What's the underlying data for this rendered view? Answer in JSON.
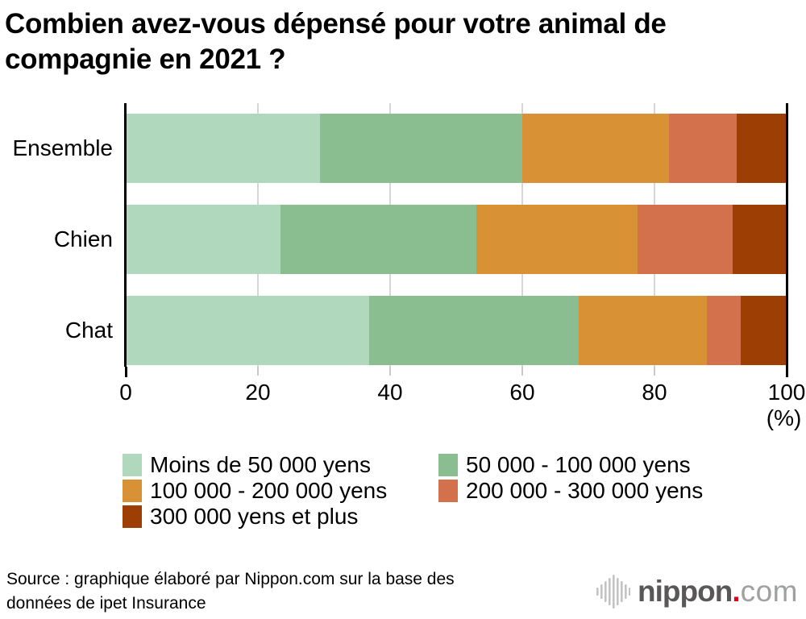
{
  "title": "Combien avez-vous dépensé pour votre animal de compagnie en 2021 ?",
  "chart_data": {
    "type": "bar",
    "orientation": "horizontal",
    "stacked": true,
    "unit": "%",
    "categories": [
      "Ensemble",
      "Chien",
      "Chat"
    ],
    "series": [
      {
        "name": "Moins de 50 000 yens",
        "color": "#afd8bd",
        "values": [
          29.4,
          23.4,
          36.8
        ]
      },
      {
        "name": "50 000 - 100 000 yens",
        "color": "#8abd90",
        "values": [
          30.6,
          29.6,
          31.7
        ]
      },
      {
        "name": "100 000 - 200 000 yens",
        "color": "#d89134",
        "values": [
          22.2,
          24.4,
          19.4
        ]
      },
      {
        "name": "200 000 - 300 000 yens",
        "color": "#d2714c",
        "values": [
          10.2,
          14.4,
          5.2
        ]
      },
      {
        "name": "300 000 yens et plus",
        "color": "#9d3e05",
        "values": [
          7.6,
          8.2,
          6.9
        ]
      }
    ],
    "x_ticks": [
      0,
      20,
      40,
      60,
      80,
      100
    ],
    "xlim": [
      0,
      100
    ],
    "axis_unit_label": "(%)",
    "grid": true,
    "legend_position": "bottom"
  },
  "source": {
    "line1": "Source : graphique élaboré par Nippon.com sur la base des",
    "line2": "données de ipet Insurance"
  },
  "logo": {
    "name": "nippon",
    "dot": ".",
    "tld": "com",
    "dot_color": "#e60012",
    "name_color": "#595757",
    "tld_color": "#9fa0a0",
    "icon_color": "#c3c3c3"
  }
}
